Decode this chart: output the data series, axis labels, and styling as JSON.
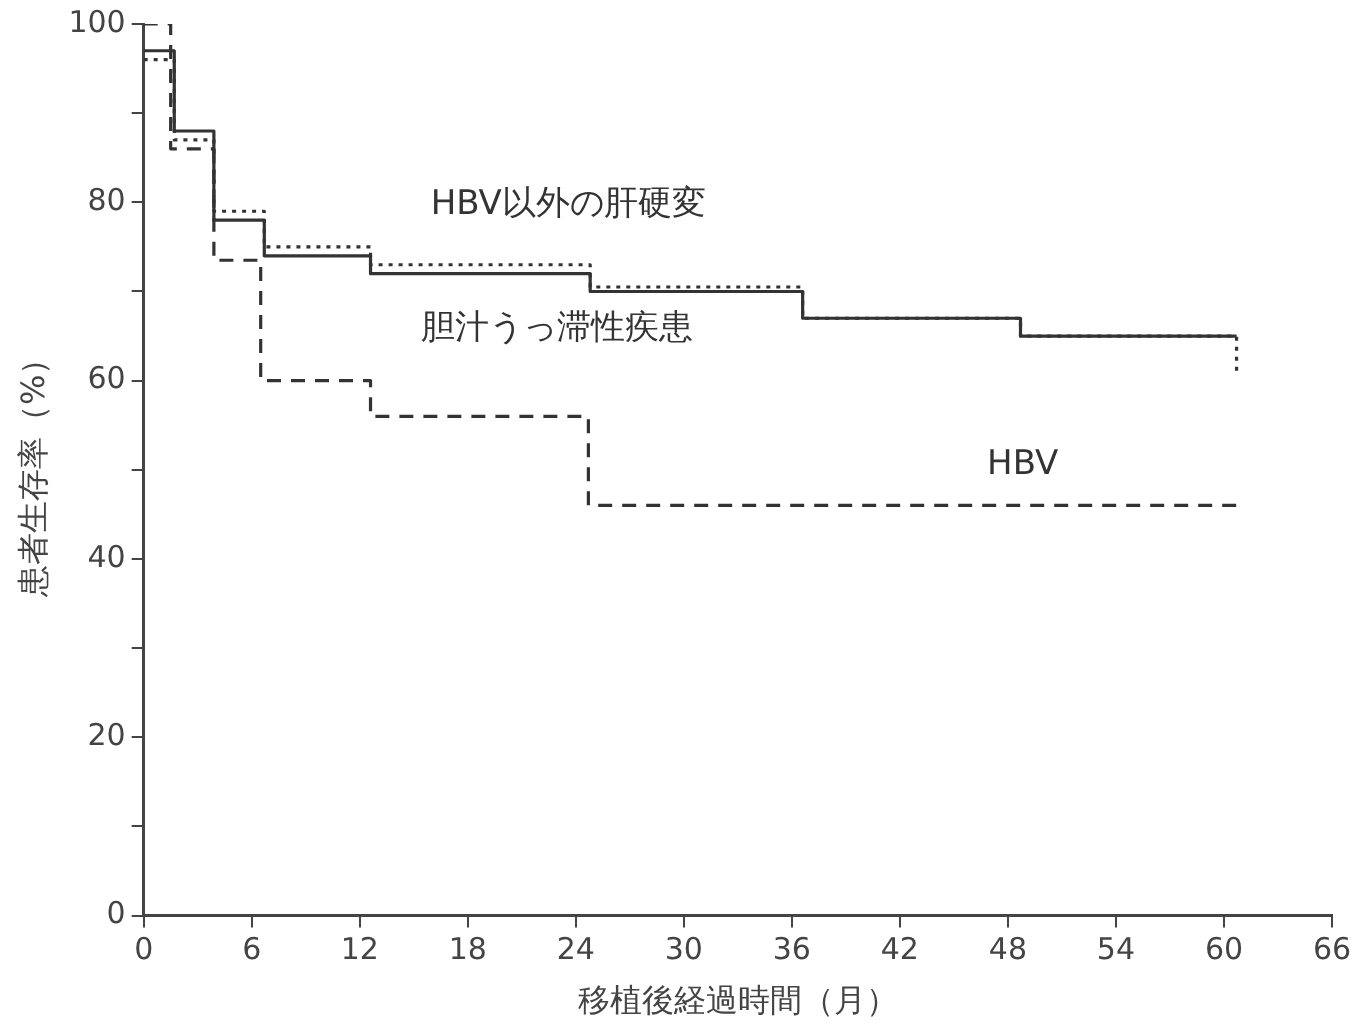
{
  "chart_data": {
    "type": "step",
    "xlabel": "移植後経過時間（月）",
    "ylabel": "患者生存率（%）",
    "xlim": [
      0,
      66
    ],
    "xticks": [
      0,
      6,
      12,
      18,
      24,
      30,
      36,
      42,
      48,
      54,
      60,
      66
    ],
    "ylim": [
      0,
      100
    ],
    "yticks": [
      0,
      {
        "value": 10,
        "label": null
      },
      20,
      {
        "value": 30,
        "label": null
      },
      40,
      {
        "value": 50,
        "label": null
      },
      60,
      {
        "value": 70,
        "label": null
      },
      80,
      {
        "value": 90,
        "label": null
      },
      100
    ],
    "grid": false,
    "legend": false,
    "marker": "none",
    "series": [
      {
        "name": "胆汁うっ滞性疾患",
        "color": "#333333",
        "line_style": "solid",
        "x": [
          0,
          1.7,
          3.9,
          6.7,
          12.6,
          24.8,
          36.6,
          48.7,
          60.7
        ],
        "values": [
          97,
          88,
          78,
          74,
          72,
          70,
          67,
          65,
          65
        ]
      },
      {
        "name": "HBV以外の肝硬変",
        "color": "#333333",
        "line_style": "dotted",
        "x": [
          0,
          1.7,
          3.9,
          6.7,
          12.6,
          24.8,
          36.6,
          48.7,
          60.7,
          60.7
        ],
        "values": [
          96,
          87,
          79,
          75,
          73,
          70.5,
          67,
          65,
          65,
          61
        ]
      },
      {
        "name": "HBV",
        "color": "#333333",
        "line_style": "dashed",
        "x": [
          0,
          1.5,
          3.9,
          6.5,
          12.6,
          24.7,
          60.7
        ],
        "values": [
          100,
          86,
          73.5,
          60,
          56,
          46,
          45.5
        ]
      }
    ]
  }
}
